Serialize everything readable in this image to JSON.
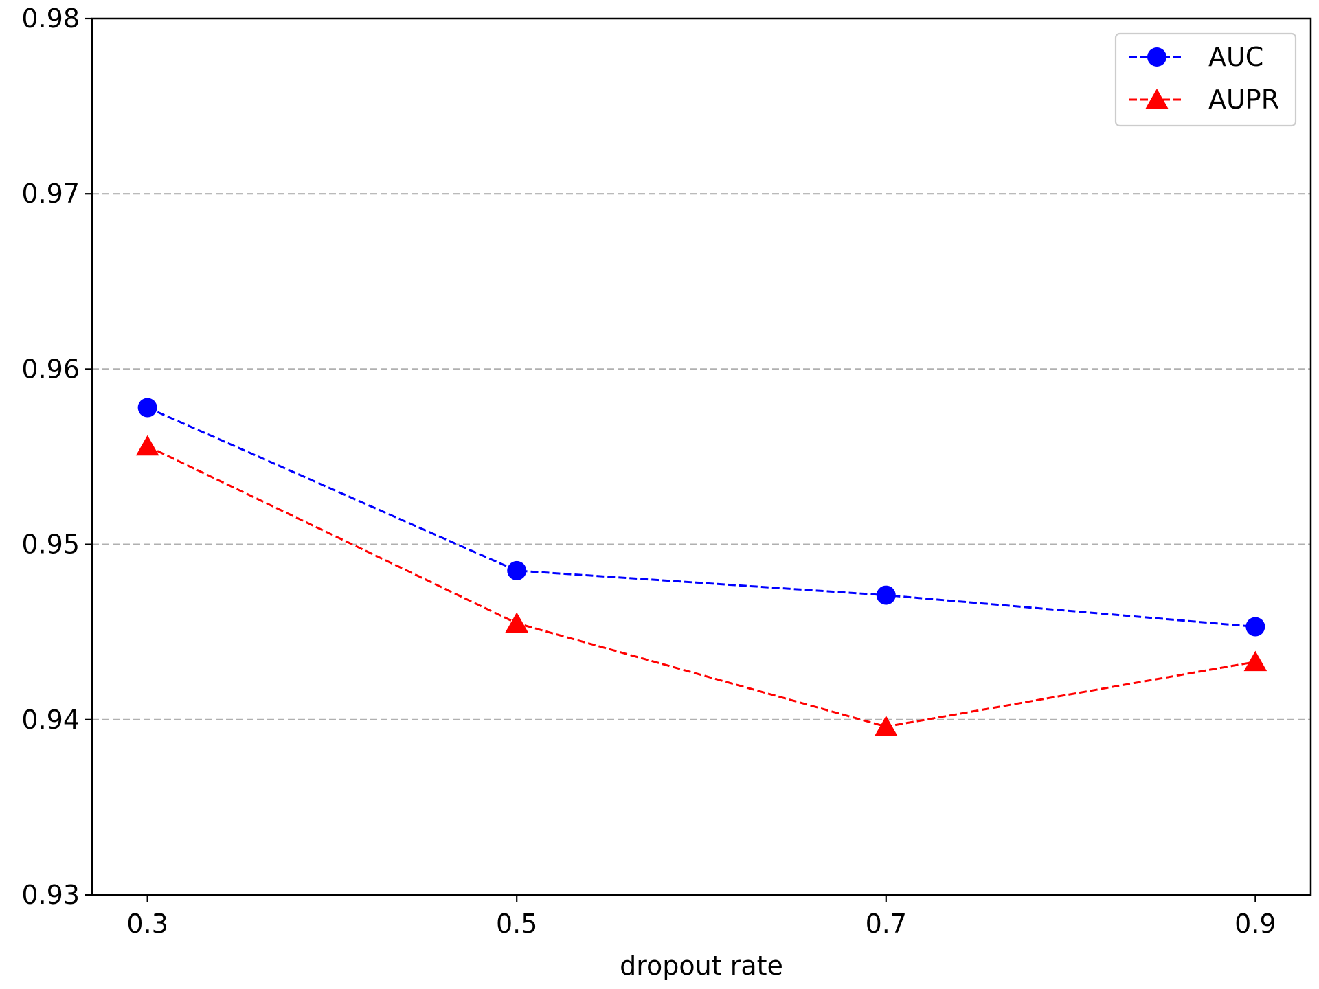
{
  "chart_data": {
    "type": "line",
    "title": "",
    "xlabel": "dropout rate",
    "ylabel": "",
    "x": [
      0.3,
      0.5,
      0.7,
      0.9
    ],
    "x_tick_labels": [
      "0.3",
      "0.5",
      "0.7",
      "0.9"
    ],
    "xlim": [
      0.27,
      0.93
    ],
    "ylim": [
      0.93,
      0.98
    ],
    "y_ticks": [
      0.93,
      0.94,
      0.95,
      0.96,
      0.97,
      0.98
    ],
    "y_tick_labels": [
      "0.93",
      "0.94",
      "0.95",
      "0.96",
      "0.97",
      "0.98"
    ],
    "grid": "horizontal-dashed",
    "legend_position": "top-right",
    "series": [
      {
        "name": "AUC",
        "values": [
          0.9578,
          0.9485,
          0.9471,
          0.9453
        ],
        "color": "#0000ff",
        "marker": "circle",
        "line_style": "dashed"
      },
      {
        "name": "AUPR",
        "values": [
          0.9556,
          0.9455,
          0.9396,
          0.9433
        ],
        "color": "#ff0000",
        "marker": "triangle",
        "line_style": "dashed"
      }
    ]
  }
}
